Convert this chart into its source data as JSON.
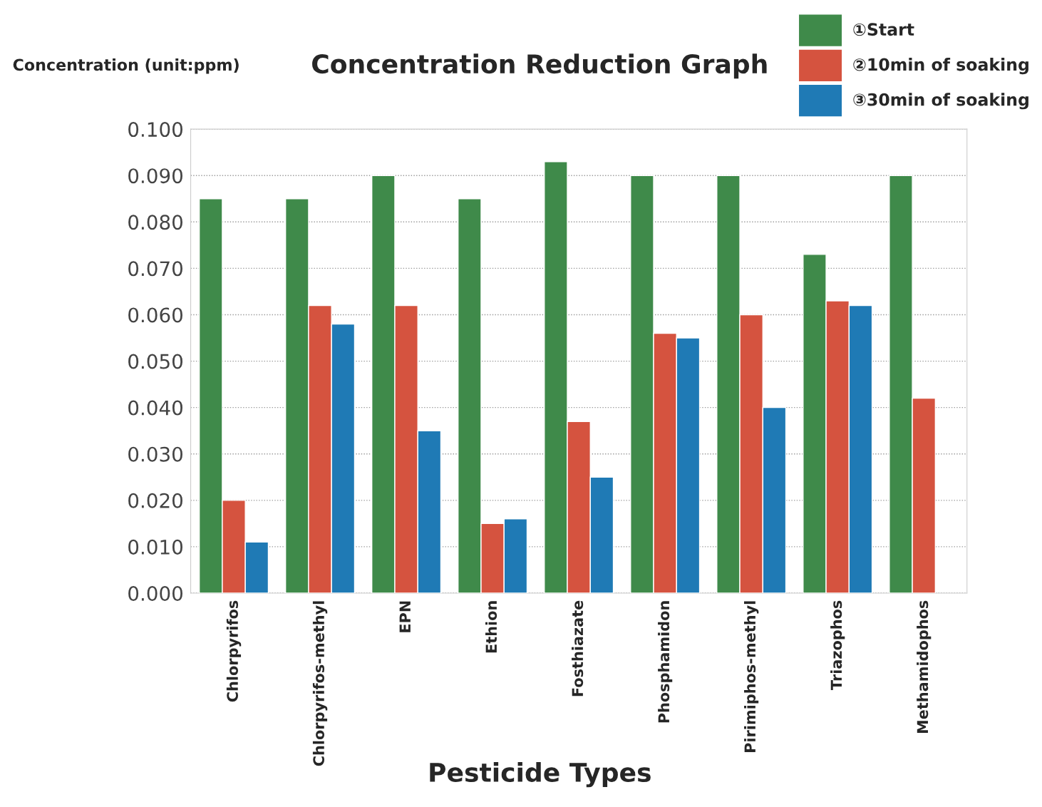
{
  "chart_data": {
    "type": "bar",
    "title": "Concentration Reduction Graph",
    "ylabel": "Concentration (unit:ppm)",
    "xlabel": "Pesticide Types",
    "categories": [
      "Chlorpyrifos",
      "Chlorpyrifos-methyl",
      "EPN",
      "Ethion",
      "Fosthiazate",
      "Phosphamidon",
      "Pirimiphos-methyl",
      "Triazophos",
      "Methamidophos"
    ],
    "series": [
      {
        "name": "①Start",
        "color": "#3f8a4a",
        "values": [
          0.085,
          0.085,
          0.09,
          0.085,
          0.093,
          0.09,
          0.09,
          0.073,
          0.09
        ]
      },
      {
        "name": "②10min of soaking",
        "color": "#d5533f",
        "values": [
          0.02,
          0.062,
          0.062,
          0.015,
          0.037,
          0.056,
          0.06,
          0.063,
          0.042
        ]
      },
      {
        "name": "③30min of soaking",
        "color": "#1f7ab5",
        "values": [
          0.011,
          0.058,
          0.035,
          0.016,
          0.025,
          0.055,
          0.04,
          0.062,
          null
        ]
      }
    ],
    "ylim": [
      0,
      0.1
    ],
    "yticks": [
      {
        "value": 0,
        "label": "0.000"
      },
      {
        "value": 0.01,
        "label": "0.010"
      },
      {
        "value": 0.02,
        "label": "0.020"
      },
      {
        "value": 0.03,
        "label": "0.030"
      },
      {
        "value": 0.04,
        "label": "0.040"
      },
      {
        "value": 0.05,
        "label": "0.050"
      },
      {
        "value": 0.06,
        "label": "0.060"
      },
      {
        "value": 0.07,
        "label": "0.070"
      },
      {
        "value": 0.08,
        "label": "0.080"
      },
      {
        "value": 0.09,
        "label": "0.090"
      },
      {
        "value": 0.1,
        "label": "0.100"
      }
    ],
    "grid": "y",
    "legend": "top right"
  }
}
